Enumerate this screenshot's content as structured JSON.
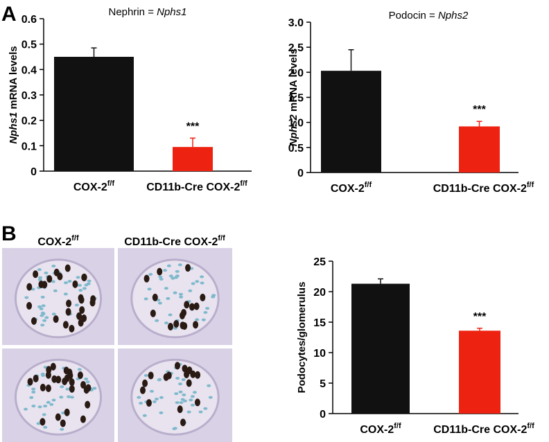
{
  "panels": [
    "A",
    "B"
  ],
  "image_columns": [
    [
      "COX-2",
      "f/f"
    ],
    [
      "CD11b-Cre COX-2",
      "f/f"
    ]
  ],
  "chart_data": [
    {
      "type": "bar",
      "title": [
        "Nephrin = ",
        "Nphs1"
      ],
      "ylabel": [
        "Nphs1",
        " mRNA levels"
      ],
      "categories": [
        [
          "COX-2",
          "f/f"
        ],
        [
          "CD11b-Cre COX-2",
          "f/f"
        ]
      ],
      "values": [
        0.45,
        0.095
      ],
      "errors": [
        0.035,
        0.035
      ],
      "colors": [
        "#111111",
        "#ee2211"
      ],
      "value_annotations": [
        null,
        "***"
      ],
      "ylim": [
        0,
        0.6
      ],
      "yticks": [
        0,
        0.1,
        0.2,
        0.3,
        0.4,
        0.5,
        0.6
      ]
    },
    {
      "type": "bar",
      "title": [
        "Podocin = ",
        "Nphs2"
      ],
      "ylabel": [
        "Nphs2",
        " mRNA levels"
      ],
      "categories": [
        [
          "COX-2",
          "f/f"
        ],
        [
          "CD11b-Cre COX-2",
          "f/f"
        ]
      ],
      "values": [
        2.03,
        0.92
      ],
      "errors": [
        0.42,
        0.1
      ],
      "colors": [
        "#111111",
        "#ee2211"
      ],
      "value_annotations": [
        null,
        "***"
      ],
      "ylim": [
        0,
        3
      ],
      "yticks": [
        0,
        0.5,
        {
          "value": 1,
          "label": "1.0"
        },
        1.5,
        {
          "value": 2,
          "label": "2.0"
        },
        2.5,
        {
          "value": 3,
          "label": "3.0"
        }
      ]
    },
    {
      "type": "bar",
      "ylabel": [
        "Podocytes/glomerulus"
      ],
      "categories": [
        [
          "COX-2",
          "f/f"
        ],
        [
          "CD11b-Cre COX-2",
          "f/f"
        ]
      ],
      "values": [
        21.3,
        13.6
      ],
      "errors": [
        0.8,
        0.4
      ],
      "colors": [
        "#111111",
        "#ee2211"
      ],
      "value_annotations": [
        null,
        "***"
      ],
      "ylim": [
        0,
        25
      ],
      "yticks": [
        0,
        5,
        10,
        15,
        20,
        25
      ]
    }
  ]
}
